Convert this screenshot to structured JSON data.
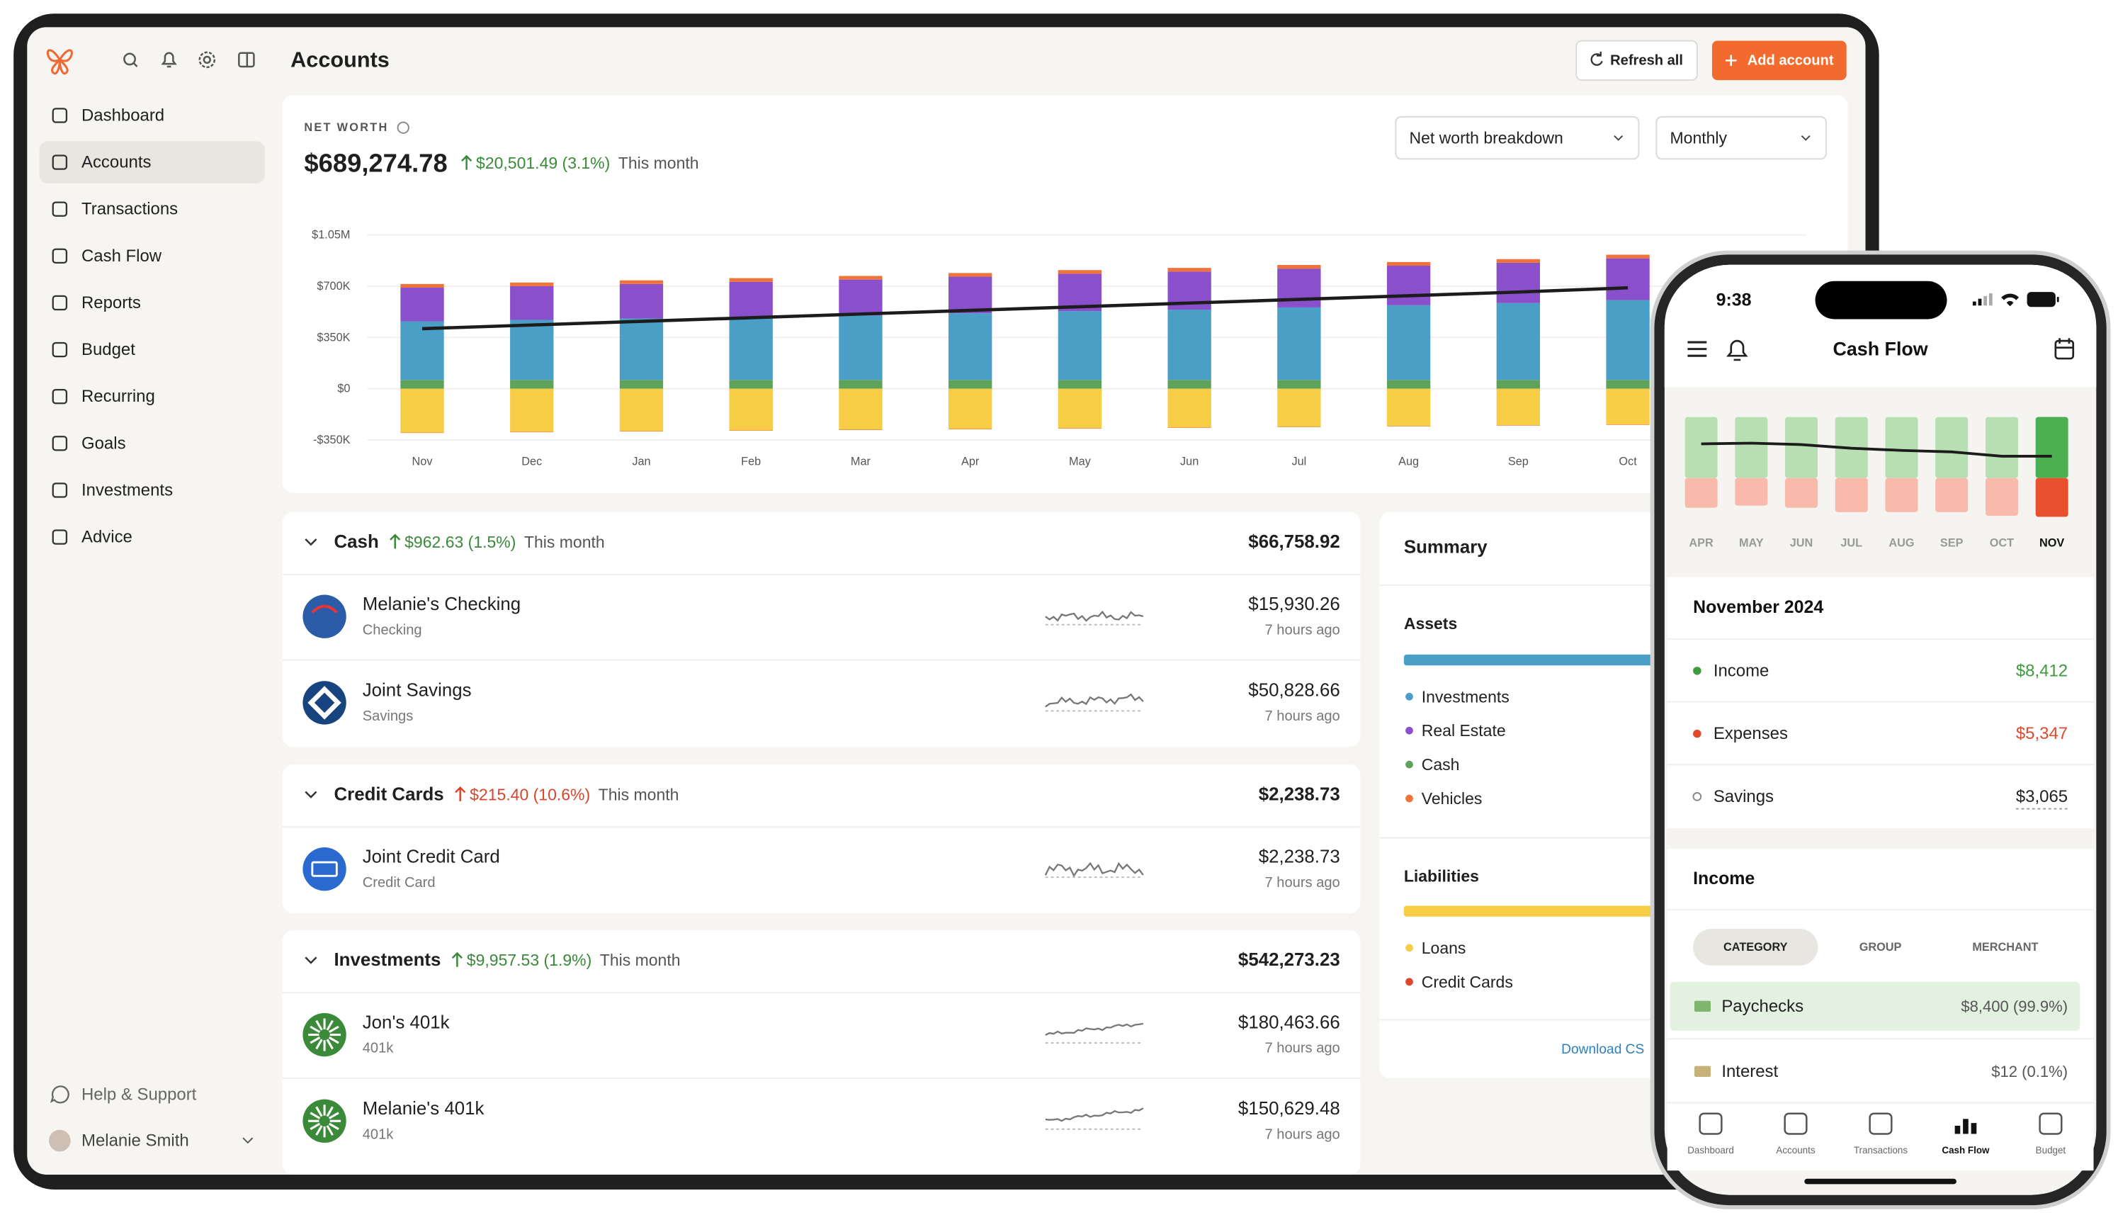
{
  "header": {
    "title": "Accounts",
    "refresh": "Refresh all",
    "add": "Add account"
  },
  "sidebar": {
    "nav": [
      "Dashboard",
      "Accounts",
      "Transactions",
      "Cash Flow",
      "Reports",
      "Budget",
      "Recurring",
      "Goals",
      "Investments",
      "Advice"
    ],
    "help": "Help & Support",
    "user": "Melanie Smith"
  },
  "net_worth": {
    "label": "NET WORTH",
    "value": "$689,274.78",
    "change": "$20,501.49 (3.1%)",
    "period": "This month",
    "breakdown": "Net worth breakdown",
    "interval": "Monthly"
  },
  "chart_data": [
    {
      "type": "bar",
      "stacked": true,
      "grid": true,
      "categories": [
        "Nov",
        "Dec",
        "Jan",
        "Feb",
        "Mar",
        "Apr",
        "May",
        "Jun",
        "Jul",
        "Aug",
        "Sep",
        "Oct"
      ],
      "ylim": [
        -350000,
        1050000
      ],
      "yticks": [
        {
          "value": 1050000,
          "label": "$1.05M"
        },
        {
          "value": 700000,
          "label": "$700K"
        },
        {
          "value": 350000,
          "label": "$350K"
        },
        {
          "value": 0,
          "label": "$0"
        },
        {
          "value": -350000,
          "label": "-$350K"
        }
      ],
      "series": [
        {
          "name": "Cash",
          "color": "#5fa35a",
          "values": [
            60000,
            60000,
            60000,
            60000,
            60000,
            60000,
            60000,
            60000,
            60000,
            60000,
            60000,
            60000
          ]
        },
        {
          "name": "Investments",
          "color": "#4a9fc6",
          "values": [
            400000,
            410000,
            420000,
            430000,
            440000,
            455000,
            470000,
            480000,
            495000,
            510000,
            525000,
            545000
          ]
        },
        {
          "name": "Real Estate",
          "color": "#8a4fcb",
          "values": [
            230000,
            230000,
            235000,
            240000,
            245000,
            250000,
            255000,
            260000,
            265000,
            270000,
            275000,
            285000
          ]
        },
        {
          "name": "Vehicles",
          "color": "#f0743a",
          "values": [
            25000,
            25000,
            25000,
            25000,
            25000,
            25000,
            25000,
            25000,
            25000,
            25000,
            25000,
            25000
          ]
        },
        {
          "name": "Loans",
          "color": "#f6cd45",
          "values": [
            -300000,
            -295000,
            -290000,
            -285000,
            -280000,
            -275000,
            -270000,
            -265000,
            -260000,
            -255000,
            -250000,
            -245000
          ]
        },
        {
          "name": "Credit Cards",
          "color": "#e0452f",
          "values": [
            -2000,
            -2000,
            -2000,
            -2000,
            -2000,
            -2000,
            -2000,
            -2000,
            -2000,
            -2000,
            -2000,
            -2000
          ]
        },
        {
          "type": "line",
          "color": "#1c1c1c",
          "values": [
            410000,
            435000,
            460000,
            485000,
            510000,
            535000,
            560000,
            585000,
            610000,
            635000,
            660000,
            689000
          ]
        }
      ]
    },
    {
      "type": "bar",
      "categories": [
        "APR",
        "MAY",
        "JUN",
        "JUL",
        "AUG",
        "SEP",
        "OCT",
        "NOV"
      ],
      "series": [
        {
          "colors": [
            "#b8dfb2",
            "#b8dfb2",
            "#b8dfb2",
            "#b8dfb2",
            "#b8dfb2",
            "#b8dfb2",
            "#b8dfb2",
            "#4caf50"
          ],
          "values": [
            8400,
            8400,
            8400,
            8400,
            8400,
            8400,
            8400,
            8412
          ]
        },
        {
          "colors": [
            "#f9b9ab",
            "#f9b9ab",
            "#f9b9ab",
            "#f9b9ab",
            "#f9b9ab",
            "#f9b9ab",
            "#f9b9ab",
            "#e8502f"
          ],
          "values": [
            4100,
            3800,
            4100,
            4700,
            4700,
            4700,
            5200,
            5347
          ]
        },
        {
          "type": "line",
          "color": "#1c1c1c",
          "values": [
            4700,
            4800,
            4600,
            4100,
            3800,
            3600,
            3000,
            3000
          ]
        }
      ]
    }
  ],
  "groups": [
    {
      "name": "Cash",
      "change": "$962.63 (1.5%)",
      "period": "This month",
      "total": "$66,758.92",
      "accounts": [
        {
          "name": "Melanie's Checking",
          "type": "Checking",
          "balance": "$15,930.26",
          "updated": "7 hours ago"
        },
        {
          "name": "Joint Savings",
          "type": "Savings",
          "balance": "$50,828.66",
          "updated": "7 hours ago"
        }
      ]
    },
    {
      "name": "Credit Cards",
      "change": "$215.40 (10.6%)",
      "period": "This month",
      "total": "$2,238.73",
      "accounts": [
        {
          "name": "Joint Credit Card",
          "type": "Credit Card",
          "balance": "$2,238.73",
          "updated": "7 hours ago"
        }
      ]
    },
    {
      "name": "Investments",
      "change": "$9,957.53 (1.9%)",
      "period": "This month",
      "total": "$542,273.23",
      "accounts": [
        {
          "name": "Jon's 401k",
          "type": "401k",
          "balance": "$180,463.66",
          "updated": "7 hours ago"
        },
        {
          "name": "Melanie's 401k",
          "type": "401k",
          "balance": "$150,629.48",
          "updated": "7 hours ago"
        }
      ]
    }
  ],
  "summary": {
    "title": "Summary",
    "assets": "Assets",
    "liabilities": "Liabilities",
    "download": "Download CS"
  },
  "phone": {
    "time": "9:38",
    "title": "Cash Flow",
    "period": "November 2024",
    "rows": [
      {
        "label": "Income",
        "value": "$8,412"
      },
      {
        "label": "Expenses",
        "value": "$5,347"
      },
      {
        "label": "Savings",
        "value": "$3,065"
      }
    ],
    "section": "Income",
    "tabs": [
      "CATEGORY",
      "GROUP",
      "MERCHANT"
    ],
    "categories": [
      {
        "label": "Paychecks",
        "value": "$8,400 (99.9%)"
      },
      {
        "label": "Interest",
        "value": "$12 (0.1%)"
      }
    ],
    "tabbar": [
      "Dashboard",
      "Accounts",
      "Transactions",
      "Cash Flow",
      "Budget"
    ]
  }
}
